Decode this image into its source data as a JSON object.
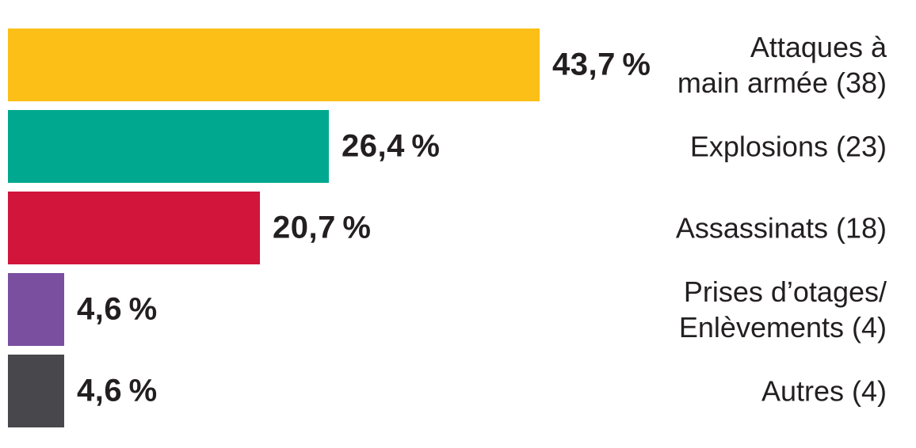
{
  "chart_data": {
    "type": "bar",
    "orientation": "horizontal",
    "title": "",
    "xlabel": "",
    "ylabel": "",
    "xlim": [
      0,
      43.7
    ],
    "grid": false,
    "legend": false,
    "value_suffix": "%",
    "categories": [
      "Attaques à main armée (38)",
      "Explosions (23)",
      "Assassinats (18)",
      "Prises d’otages/Enlèvements (4)",
      "Autres (4)"
    ],
    "values": [
      43.7,
      26.4,
      20.7,
      4.6,
      4.6
    ],
    "counts": [
      38,
      23,
      18,
      4,
      4
    ],
    "items": [
      {
        "label_lines": [
          "Attaques à",
          "main armée (38)"
        ],
        "percent": 43.7,
        "percent_label": "43,7 %",
        "count": 38,
        "color": "#FCBF17"
      },
      {
        "label_lines": [
          "Explosions (23)"
        ],
        "percent": 26.4,
        "percent_label": "26,4 %",
        "count": 23,
        "color": "#00A88F"
      },
      {
        "label_lines": [
          "Assassinats (18)"
        ],
        "percent": 20.7,
        "percent_label": "20,7 %",
        "count": 18,
        "color": "#D2153B"
      },
      {
        "label_lines": [
          "Prises d’otages/",
          "Enlèvements (4)"
        ],
        "percent": 4.6,
        "percent_label": "4,6 %",
        "count": 4,
        "color": "#7A4FA0"
      },
      {
        "label_lines": [
          "Autres (4)"
        ],
        "percent": 4.6,
        "percent_label": "4,6 %",
        "count": 4,
        "color": "#48474B"
      }
    ],
    "text_color": "#231F20"
  }
}
